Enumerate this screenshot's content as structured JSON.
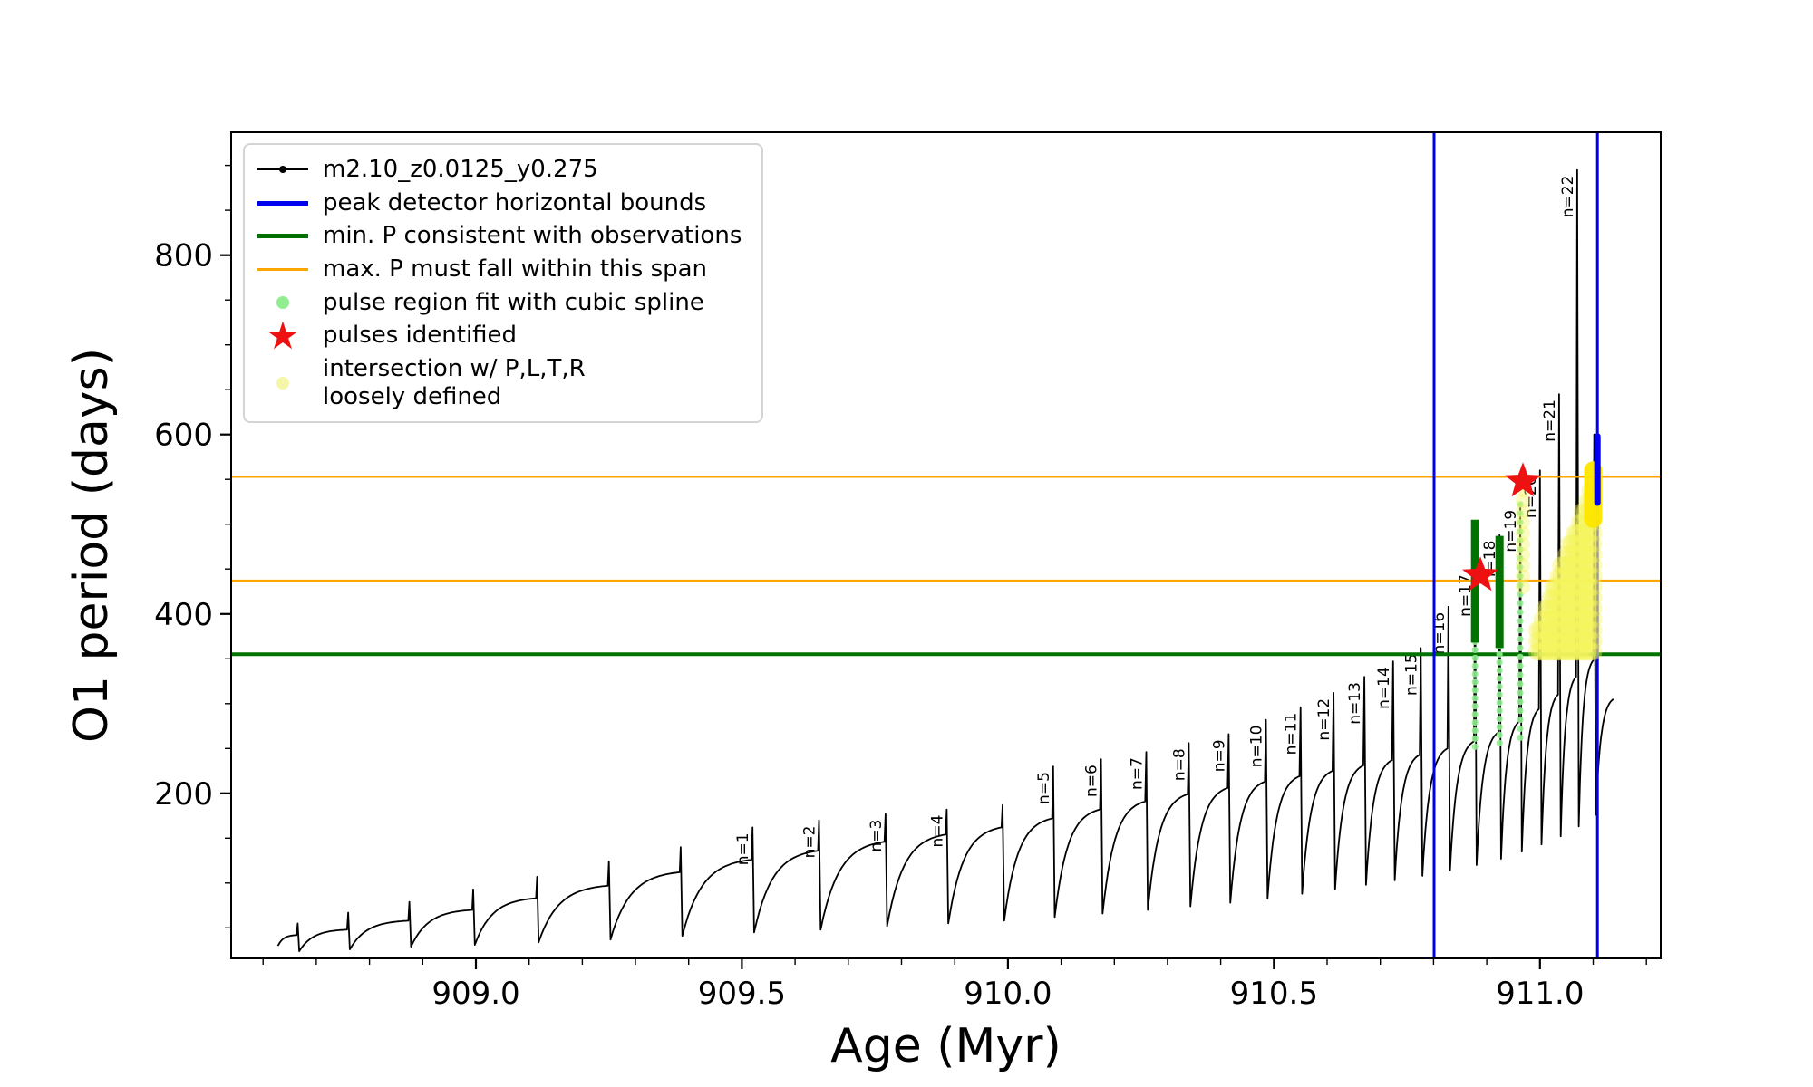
{
  "chart_data": {
    "type": "line",
    "title": "",
    "xlabel": "Age (Myr)",
    "ylabel": "O1 period (days)",
    "xlim": [
      908.54,
      911.227
    ],
    "ylim": [
      16,
      937
    ],
    "x_ticks": [
      909.0,
      909.5,
      910.0,
      910.5,
      911.0
    ],
    "x_minor_step": 0.1,
    "y_ticks": [
      200,
      400,
      600,
      800
    ],
    "y_minor_step": 50,
    "grid": false,
    "legend_position": "upper left",
    "series_label": "m2.10_z0.0125_y0.275",
    "colors": {
      "series": "#000000",
      "blue": "#0000ee",
      "green": "#007200",
      "orange": "#ffa500",
      "spline_green": "#90ee90",
      "star_red": "#ee1111",
      "pale_yellow": "#f6f65e",
      "bright_yellow": "#ffe600"
    },
    "legend": {
      "items": [
        {
          "symbol": "line-dot",
          "label": "m2.10_z0.0125_y0.275",
          "color": "#000000",
          "lw": 2
        },
        {
          "symbol": "line",
          "label": "peak detector horizontal bounds",
          "color": "#0000ee",
          "lw": 5
        },
        {
          "symbol": "line",
          "label": "min. P consistent with observations",
          "color": "#007200",
          "lw": 5
        },
        {
          "symbol": "line",
          "label": "max. P must fall within this span",
          "color": "#ffa500",
          "lw": 3
        },
        {
          "symbol": "dot",
          "label": "pulse region fit with cubic spline",
          "color": "#90ee90",
          "lw": 0
        },
        {
          "symbol": "star",
          "label": "pulses identified",
          "color": "#ee1111",
          "lw": 0
        },
        {
          "symbol": "dot",
          "label": "intersection w/ P,L,T,R\nloosely defined",
          "color": "#f6f6a8",
          "lw": 0
        }
      ]
    },
    "hlines_orange": [
      437,
      553
    ],
    "hline_green": 355,
    "vlines_blue": [
      910.801,
      911.108
    ],
    "curve_start": [
      908.628,
      30
    ],
    "curve_end": [
      911.138,
      305
    ],
    "pulses": [
      [
        908.665,
        24,
        42,
        55,
        ""
      ],
      [
        908.76,
        26,
        48,
        67,
        ""
      ],
      [
        908.875,
        29,
        58,
        79,
        ""
      ],
      [
        908.995,
        31,
        70,
        93,
        ""
      ],
      [
        909.115,
        34,
        83,
        107,
        ""
      ],
      [
        909.25,
        37,
        97,
        124,
        ""
      ],
      [
        909.385,
        41,
        112,
        140,
        ""
      ],
      [
        909.52,
        45,
        126,
        162,
        "n=1"
      ],
      [
        909.645,
        48,
        136,
        170,
        "n=2"
      ],
      [
        909.77,
        52,
        146,
        177,
        "n=3"
      ],
      [
        909.885,
        55,
        154,
        182,
        "n=4"
      ],
      [
        909.99,
        58,
        162,
        187,
        ""
      ],
      [
        910.085,
        62,
        172,
        230,
        "n=5"
      ],
      [
        910.175,
        66,
        182,
        238,
        "n=6"
      ],
      [
        910.26,
        70,
        191,
        246,
        "n=7"
      ],
      [
        910.34,
        74,
        199,
        256,
        "n=8"
      ],
      [
        910.415,
        78,
        206,
        266,
        "n=9"
      ],
      [
        910.485,
        83,
        213,
        282,
        "n=10"
      ],
      [
        910.55,
        88,
        219,
        296,
        "n=11"
      ],
      [
        910.612,
        93,
        225,
        312,
        "n=12"
      ],
      [
        910.67,
        98,
        231,
        330,
        "n=13"
      ],
      [
        910.724,
        103,
        237,
        347,
        "n=14"
      ],
      [
        910.776,
        108,
        243,
        362,
        "n=15"
      ],
      [
        910.828,
        114,
        250,
        408,
        "n=16"
      ],
      [
        910.878,
        120,
        258,
        450,
        "n=17"
      ],
      [
        910.924,
        127,
        268,
        488,
        "n=18"
      ],
      [
        910.963,
        135,
        280,
        522,
        "n=19"
      ],
      [
        911.0,
        143,
        294,
        560,
        "n=20"
      ],
      [
        911.036,
        152,
        310,
        645,
        "n=21"
      ],
      [
        911.07,
        163,
        330,
        895,
        "n=22"
      ],
      [
        911.102,
        176,
        348,
        600,
        ""
      ]
    ],
    "spline_columns": [
      {
        "x": 910.878,
        "y0": 252,
        "y1": 500,
        "step": 9
      },
      {
        "x": 910.924,
        "y0": 256,
        "y1": 478,
        "step": 9
      },
      {
        "x": 910.963,
        "y0": 262,
        "y1": 528,
        "step": 10
      }
    ],
    "green_bars": [
      {
        "x": 910.878,
        "y0": 368,
        "y1": 505
      },
      {
        "x": 910.924,
        "y0": 362,
        "y1": 487
      }
    ],
    "stars": [
      [
        910.888,
        443
      ],
      [
        910.968,
        548
      ]
    ],
    "yellow_region": {
      "x0": 910.995,
      "x1": 911.1,
      "step": 0.005,
      "y_bottom": 358,
      "top0": 385,
      "top1": 548,
      "dy": 12,
      "r": 10
    },
    "yellow_columns": [
      {
        "x": 910.968,
        "y0": 430,
        "y1": 552,
        "dy": 12,
        "r": 8
      }
    ],
    "yellow_bar": {
      "x": 911.1,
      "y0": 506,
      "y1": 560
    },
    "blue_bar": {
      "x": 911.108,
      "y0": 524,
      "y1": 598
    }
  }
}
